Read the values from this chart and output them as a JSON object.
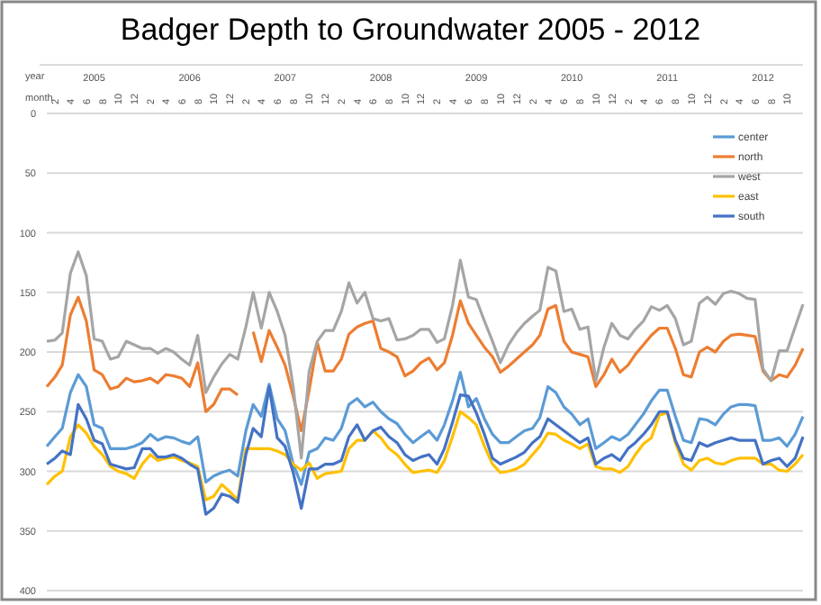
{
  "chart_data": {
    "type": "line",
    "title": "Badger Depth to Groundwater  2005 - 2012",
    "xlabel": "month",
    "x2label": "year",
    "x": [
      "2005-01",
      "2005-02",
      "2005-03",
      "2005-04",
      "2005-05",
      "2005-06",
      "2005-07",
      "2005-08",
      "2005-09",
      "2005-10",
      "2005-11",
      "2005-12",
      "2006-01",
      "2006-02",
      "2006-03",
      "2006-04",
      "2006-05",
      "2006-06",
      "2006-07",
      "2006-08",
      "2006-09",
      "2006-10",
      "2006-11",
      "2006-12",
      "2007-01",
      "2007-02",
      "2007-03",
      "2007-04",
      "2007-05",
      "2007-06",
      "2007-07",
      "2007-08",
      "2007-09",
      "2007-10",
      "2007-11",
      "2007-12",
      "2008-01",
      "2008-02",
      "2008-03",
      "2008-04",
      "2008-05",
      "2008-06",
      "2008-07",
      "2008-08",
      "2008-09",
      "2008-10",
      "2008-11",
      "2008-12",
      "2009-01",
      "2009-02",
      "2009-03",
      "2009-04",
      "2009-05",
      "2009-06",
      "2009-07",
      "2009-08",
      "2009-09",
      "2009-10",
      "2009-11",
      "2009-12",
      "2010-01",
      "2010-02",
      "2010-03",
      "2010-04",
      "2010-05",
      "2010-06",
      "2010-07",
      "2010-08",
      "2010-09",
      "2010-10",
      "2010-11",
      "2010-12",
      "2011-01",
      "2011-02",
      "2011-03",
      "2011-04",
      "2011-05",
      "2011-06",
      "2011-07",
      "2011-08",
      "2011-09",
      "2011-10",
      "2011-11",
      "2011-12",
      "2012-01",
      "2012-02",
      "2012-03",
      "2012-04",
      "2012-05",
      "2012-06",
      "2012-07",
      "2012-08",
      "2012-09",
      "2012-10",
      "2012-11",
      "2012-12"
    ],
    "xlim": [
      "2005-01",
      "2012-12"
    ],
    "xticks": [
      {
        "value": "2005-02",
        "label": "2"
      },
      {
        "value": "2005-04",
        "label": "4"
      },
      {
        "value": "2005-06",
        "label": "6"
      },
      {
        "value": "2005-08",
        "label": "8"
      },
      {
        "value": "2005-10",
        "label": "10"
      },
      {
        "value": "2005-12",
        "label": "12"
      },
      {
        "value": "2006-02",
        "label": "2"
      },
      {
        "value": "2006-04",
        "label": "4"
      },
      {
        "value": "2006-06",
        "label": "6"
      },
      {
        "value": "2006-08",
        "label": "8"
      },
      {
        "value": "2006-10",
        "label": "10"
      },
      {
        "value": "2006-12",
        "label": "12"
      },
      {
        "value": "2007-02",
        "label": "2"
      },
      {
        "value": "2007-04",
        "label": "4"
      },
      {
        "value": "2007-06",
        "label": "6"
      },
      {
        "value": "2007-08",
        "label": "8"
      },
      {
        "value": "2007-10",
        "label": "10"
      },
      {
        "value": "2007-12",
        "label": "12"
      },
      {
        "value": "2008-02",
        "label": "2"
      },
      {
        "value": "2008-04",
        "label": "4"
      },
      {
        "value": "2008-06",
        "label": "6"
      },
      {
        "value": "2008-08",
        "label": "8"
      },
      {
        "value": "2008-10",
        "label": "10"
      },
      {
        "value": "2008-12",
        "label": "12"
      },
      {
        "value": "2009-02",
        "label": "2"
      },
      {
        "value": "2009-04",
        "label": "4"
      },
      {
        "value": "2009-06",
        "label": "6"
      },
      {
        "value": "2009-08",
        "label": "8"
      },
      {
        "value": "2009-10",
        "label": "10"
      },
      {
        "value": "2009-12",
        "label": "12"
      },
      {
        "value": "2010-02",
        "label": "2"
      },
      {
        "value": "2010-04",
        "label": "4"
      },
      {
        "value": "2010-06",
        "label": "6"
      },
      {
        "value": "2010-08",
        "label": "8"
      },
      {
        "value": "2010-10",
        "label": "10"
      },
      {
        "value": "2010-12",
        "label": "12"
      },
      {
        "value": "2011-02",
        "label": "2"
      },
      {
        "value": "2011-04",
        "label": "4"
      },
      {
        "value": "2011-06",
        "label": "6"
      },
      {
        "value": "2011-08",
        "label": "8"
      },
      {
        "value": "2011-10",
        "label": "10"
      },
      {
        "value": "2011-12",
        "label": "12"
      },
      {
        "value": "2012-02",
        "label": "2"
      },
      {
        "value": "2012-04",
        "label": "4"
      },
      {
        "value": "2012-06",
        "label": "6"
      },
      {
        "value": "2012-08",
        "label": "8"
      },
      {
        "value": "2012-10",
        "label": "10"
      }
    ],
    "x2lim": [
      "2005-01",
      "2012-12"
    ],
    "x2ticks": [
      {
        "value": "2005-07",
        "label": "2005"
      },
      {
        "value": "2006-07",
        "label": "2006"
      },
      {
        "value": "2007-07",
        "label": "2007"
      },
      {
        "value": "2008-07",
        "label": "2008"
      },
      {
        "value": "2009-07",
        "label": "2009"
      },
      {
        "value": "2010-07",
        "label": "2010"
      },
      {
        "value": "2011-07",
        "label": "2011"
      },
      {
        "value": "2012-07",
        "label": "2012"
      }
    ],
    "ylim": [
      400,
      0
    ],
    "yticks": [
      0,
      50,
      100,
      150,
      200,
      250,
      300,
      350,
      400
    ],
    "grid": "y",
    "legend": "top right",
    "series": [
      {
        "name": "center",
        "color": "#5b9bd5",
        "values": [
          279,
          271,
          264,
          234,
          219,
          229,
          261,
          264,
          281,
          281,
          281,
          279,
          276,
          269,
          274,
          271,
          272,
          275,
          277,
          271,
          309,
          304,
          301,
          299,
          304,
          266,
          244,
          254,
          227,
          256,
          266,
          294,
          311,
          284,
          281,
          272,
          274,
          264,
          244,
          239,
          246,
          242,
          250,
          256,
          260,
          269,
          276,
          271,
          266,
          274,
          261,
          241,
          217,
          246,
          239,
          256,
          269,
          276,
          276,
          271,
          266,
          264,
          255,
          229,
          234,
          246,
          252,
          261,
          256,
          281,
          276,
          271,
          274,
          269,
          261,
          252,
          241,
          232,
          232,
          254,
          274,
          276,
          256,
          257,
          261,
          252,
          246,
          244,
          244,
          245,
          274,
          274,
          272,
          279,
          269,
          254
        ]
      },
      {
        "name": "north",
        "color": "#ed7d31",
        "values": [
          229,
          221,
          211,
          169,
          154,
          174,
          215,
          219,
          231,
          229,
          222,
          225,
          224,
          222,
          226,
          219,
          220,
          222,
          229,
          209,
          250,
          244,
          231,
          231,
          236,
          null,
          183,
          208,
          182,
          196,
          211,
          237,
          266,
          232,
          192,
          216,
          216,
          206,
          185,
          179,
          176,
          174,
          197,
          200,
          204,
          220,
          216,
          209,
          205,
          215,
          209,
          186,
          157,
          176,
          186,
          196,
          204,
          217,
          212,
          206,
          200,
          194,
          186,
          164,
          161,
          191,
          200,
          202,
          204,
          229,
          219,
          206,
          217,
          211,
          202,
          194,
          186,
          180,
          180,
          197,
          219,
          221,
          200,
          196,
          200,
          191,
          186,
          185,
          186,
          187,
          216,
          224,
          219,
          221,
          211,
          197
        ]
      },
      {
        "name": "west",
        "color": "#a5a5a5",
        "values": [
          191,
          190,
          184,
          134,
          116,
          136,
          189,
          191,
          206,
          204,
          191,
          194,
          197,
          197,
          201,
          197,
          200,
          206,
          211,
          186,
          234,
          221,
          210,
          202,
          206,
          179,
          150,
          180,
          150,
          166,
          186,
          229,
          289,
          216,
          191,
          182,
          182,
          166,
          142,
          159,
          150,
          172,
          174,
          172,
          190,
          189,
          186,
          181,
          181,
          192,
          189,
          161,
          123,
          154,
          156,
          174,
          191,
          209,
          194,
          184,
          176,
          170,
          165,
          129,
          132,
          166,
          164,
          181,
          179,
          224,
          196,
          176,
          186,
          189,
          181,
          174,
          162,
          165,
          161,
          172,
          194,
          191,
          159,
          154,
          160,
          151,
          149,
          151,
          155,
          156,
          214,
          224,
          199,
          199,
          179,
          160
        ]
      },
      {
        "name": "east",
        "color": "#ffc000",
        "values": [
          311,
          304,
          300,
          271,
          261,
          268,
          279,
          286,
          296,
          300,
          302,
          306,
          294,
          286,
          291,
          289,
          288,
          291,
          293,
          296,
          324,
          321,
          311,
          317,
          324,
          281,
          281,
          281,
          281,
          283,
          286,
          294,
          299,
          293,
          306,
          302,
          301,
          300,
          281,
          274,
          274,
          266,
          272,
          281,
          286,
          294,
          301,
          300,
          299,
          301,
          291,
          271,
          250,
          255,
          261,
          279,
          294,
          301,
          300,
          298,
          294,
          286,
          279,
          268,
          269,
          274,
          277,
          281,
          277,
          296,
          298,
          298,
          301,
          296,
          286,
          277,
          272,
          253,
          251,
          276,
          294,
          299,
          291,
          289,
          293,
          294,
          291,
          289,
          289,
          289,
          294,
          294,
          299,
          300,
          294,
          286
        ]
      },
      {
        "name": "south",
        "color": "#4472c4",
        "values": [
          294,
          289,
          283,
          286,
          244,
          256,
          274,
          277,
          294,
          296,
          298,
          297,
          281,
          281,
          288,
          288,
          286,
          289,
          294,
          298,
          336,
          331,
          319,
          321,
          326,
          286,
          264,
          271,
          229,
          272,
          279,
          301,
          331,
          298,
          298,
          294,
          294,
          291,
          271,
          261,
          274,
          266,
          263,
          271,
          276,
          286,
          291,
          288,
          286,
          294,
          281,
          259,
          236,
          237,
          251,
          269,
          289,
          294,
          291,
          288,
          284,
          276,
          271,
          256,
          261,
          266,
          271,
          276,
          272,
          294,
          289,
          286,
          291,
          281,
          276,
          269,
          261,
          250,
          250,
          274,
          289,
          291,
          276,
          279,
          276,
          274,
          272,
          274,
          274,
          274,
          294,
          291,
          289,
          296,
          289,
          271
        ]
      }
    ]
  }
}
